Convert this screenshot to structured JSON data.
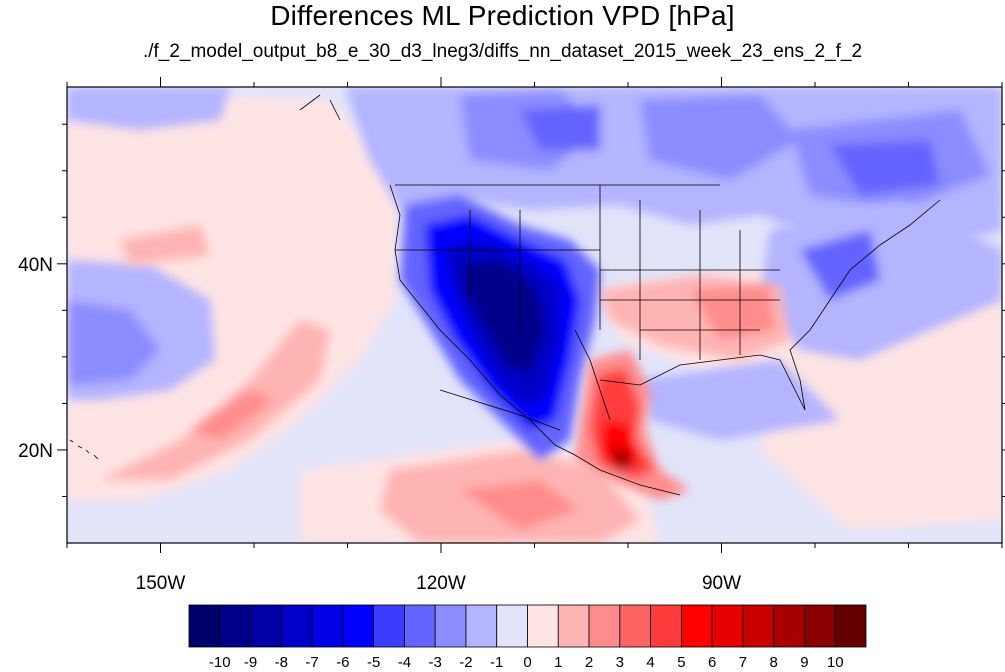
{
  "title": "Differences ML Prediction VPD [hPa]",
  "subtitle": "./f_2_model_output_b8_e_30_d3_lneg3/diffs_nn_dataset_2015_week_23_ens_2_f_2",
  "axes": {
    "x_ticks": [
      {
        "label": "150W",
        "lon": -150
      },
      {
        "label": "120W",
        "lon": -120
      },
      {
        "label": "90W",
        "lon": -90
      }
    ],
    "y_ticks": [
      {
        "label": "40N",
        "lat": 40
      },
      {
        "label": "20N",
        "lat": 20
      }
    ]
  },
  "colorbar": {
    "labels": [
      "-10",
      "-9",
      "-8",
      "-7",
      "-6",
      "-5",
      "-4",
      "-3",
      "-2",
      "-1",
      "0",
      "1",
      "2",
      "3",
      "4",
      "5",
      "6",
      "7",
      "8",
      "9",
      "10"
    ],
    "colors": [
      "#00006a",
      "#00008a",
      "#0000a8",
      "#0000c8",
      "#0000e6",
      "#0000ff",
      "#3c3cff",
      "#6464ff",
      "#8c8cff",
      "#b4b4ff",
      "#e2e4fa",
      "#ffe4e4",
      "#ffb4b4",
      "#ff8c8c",
      "#ff6464",
      "#ff3c3c",
      "#ff0000",
      "#e60000",
      "#c80000",
      "#a80000",
      "#8a0000",
      "#640000"
    ]
  },
  "colors": {
    "frame": "#000000",
    "background_field": "#e2e4fa"
  }
}
